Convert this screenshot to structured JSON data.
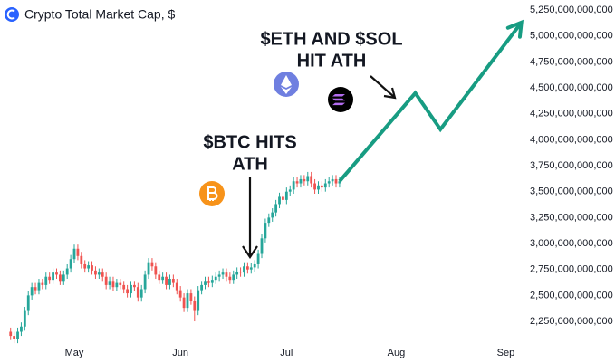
{
  "chart_data": {
    "type": "candlestick",
    "title": "Crypto Total Market Cap, $",
    "x": [
      0,
      1,
      2,
      3,
      4,
      5,
      6,
      7,
      8,
      9,
      10,
      11,
      12,
      13,
      14,
      15,
      16,
      17,
      18,
      19,
      20,
      21,
      22,
      23,
      24,
      25,
      26,
      27,
      28,
      29,
      30,
      31,
      32,
      33,
      34,
      35,
      36,
      37,
      38,
      39,
      40,
      41,
      42,
      43,
      44,
      45,
      46,
      47,
      48,
      49,
      50,
      51,
      52,
      53,
      54,
      55,
      56,
      57,
      58,
      59,
      60,
      61,
      62,
      63,
      64,
      65,
      66,
      67,
      68,
      69,
      70,
      71,
      72,
      73,
      74,
      75,
      76,
      77,
      78,
      79,
      80,
      81,
      82,
      83,
      84,
      85,
      86,
      87,
      88,
      89,
      90,
      91,
      92,
      93
    ],
    "open": [
      2150000000000.0,
      2110000000000.0,
      2080000000000.0,
      2150000000000.0,
      2200000000000.0,
      2350000000000.0,
      2500000000000.0,
      2580000000000.0,
      2550000000000.0,
      2620000000000.0,
      2600000000000.0,
      2680000000000.0,
      2650000000000.0,
      2720000000000.0,
      2700000000000.0,
      2640000000000.0,
      2700000000000.0,
      2760000000000.0,
      2850000000000.0,
      2950000000000.0,
      2880000000000.0,
      2800000000000.0,
      2760000000000.0,
      2790000000000.0,
      2740000000000.0,
      2700000000000.0,
      2720000000000.0,
      2680000000000.0,
      2600000000000.0,
      2640000000000.0,
      2580000000000.0,
      2620000000000.0,
      2600000000000.0,
      2560000000000.0,
      2520000000000.0,
      2600000000000.0,
      2580000000000.0,
      2480000000000.0,
      2560000000000.0,
      2700000000000.0,
      2820000000000.0,
      2780000000000.0,
      2700000000000.0,
      2650000000000.0,
      2680000000000.0,
      2600000000000.0,
      2660000000000.0,
      2620000000000.0,
      2550000000000.0,
      2480000000000.0,
      2380000000000.0,
      2520000000000.0,
      2450000000000.0,
      2350000000000.0,
      2550000000000.0,
      2600000000000.0,
      2640000000000.0,
      2620000000000.0,
      2650000000000.0,
      2680000000000.0,
      2700000000000.0,
      2720000000000.0,
      2680000000000.0,
      2650000000000.0,
      2700000000000.0,
      2730000000000.0,
      2720000000000.0,
      2780000000000.0,
      2750000000000.0,
      2770000000000.0,
      2800000000000.0,
      2900000000000.0,
      3050000000000.0,
      3200000000000.0,
      3250000000000.0,
      3300000000000.0,
      3380000000000.0,
      3450000000000.0,
      3420000000000.0,
      3500000000000.0,
      3520000000000.0,
      3600000000000.0,
      3580000000000.0,
      3620000000000.0,
      3600000000000.0,
      3650000000000.0,
      3580000000000.0,
      3520000000000.0,
      3560000000000.0,
      3540000000000.0,
      3580000000000.0,
      3600000000000.0,
      3620000000000.0,
      3580000000000.0
    ],
    "high": [
      2190000000000.0,
      2150000000000.0,
      2190000000000.0,
      2240000000000.0,
      2390000000000.0,
      2540000000000.0,
      2620000000000.0,
      2620000000000.0,
      2660000000000.0,
      2660000000000.0,
      2720000000000.0,
      2720000000000.0,
      2760000000000.0,
      2760000000000.0,
      2740000000000.0,
      2740000000000.0,
      2800000000000.0,
      2890000000000.0,
      2990000000000.0,
      2990000000000.0,
      2920000000000.0,
      2840000000000.0,
      2830000000000.0,
      2830000000000.0,
      2780000000000.0,
      2760000000000.0,
      2760000000000.0,
      2720000000000.0,
      2680000000000.0,
      2680000000000.0,
      2660000000000.0,
      2660000000000.0,
      2640000000000.0,
      2600000000000.0,
      2640000000000.0,
      2640000000000.0,
      2620000000000.0,
      2600000000000.0,
      2740000000000.0,
      2860000000000.0,
      2860000000000.0,
      2820000000000.0,
      2740000000000.0,
      2720000000000.0,
      2720000000000.0,
      2700000000000.0,
      2700000000000.0,
      2660000000000.0,
      2590000000000.0,
      2520000000000.0,
      2560000000000.0,
      2560000000000.0,
      2490000000000.0,
      2590000000000.0,
      2640000000000.0,
      2680000000000.0,
      2680000000000.0,
      2690000000000.0,
      2720000000000.0,
      2740000000000.0,
      2760000000000.0,
      2760000000000.0,
      2720000000000.0,
      2740000000000.0,
      2770000000000.0,
      2770000000000.0,
      2820000000000.0,
      2820000000000.0,
      2810000000000.0,
      2840000000000.0,
      2940000000000.0,
      3090000000000.0,
      3240000000000.0,
      3290000000000.0,
      3340000000000.0,
      3420000000000.0,
      3490000000000.0,
      3490000000000.0,
      3540000000000.0,
      3560000000000.0,
      3640000000000.0,
      3640000000000.0,
      3660000000000.0,
      3660000000000.0,
      3690000000000.0,
      3690000000000.0,
      3620000000000.0,
      3600000000000.0,
      3600000000000.0,
      3620000000000.0,
      3640000000000.0,
      3660000000000.0,
      3660000000000.0,
      3640000000000.0
    ],
    "low": [
      2070000000000.0,
      2040000000000.0,
      2040000000000.0,
      2110000000000.0,
      2160000000000.0,
      2310000000000.0,
      2460000000000.0,
      2510000000000.0,
      2510000000000.0,
      2560000000000.0,
      2560000000000.0,
      2610000000000.0,
      2610000000000.0,
      2660000000000.0,
      2600000000000.0,
      2600000000000.0,
      2660000000000.0,
      2720000000000.0,
      2810000000000.0,
      2840000000000.0,
      2760000000000.0,
      2720000000000.0,
      2720000000000.0,
      2700000000000.0,
      2660000000000.0,
      2660000000000.0,
      2640000000000.0,
      2560000000000.0,
      2560000000000.0,
      2540000000000.0,
      2540000000000.0,
      2560000000000.0,
      2520000000000.0,
      2480000000000.0,
      2480000000000.0,
      2540000000000.0,
      2440000000000.0,
      2440000000000.0,
      2520000000000.0,
      2660000000000.0,
      2740000000000.0,
      2660000000000.0,
      2610000000000.0,
      2610000000000.0,
      2560000000000.0,
      2560000000000.0,
      2580000000000.0,
      2510000000000.0,
      2440000000000.0,
      2340000000000.0,
      2340000000000.0,
      2410000000000.0,
      2250000000000.0,
      2310000000000.0,
      2510000000000.0,
      2560000000000.0,
      2580000000000.0,
      2580000000000.0,
      2610000000000.0,
      2640000000000.0,
      2660000000000.0,
      2640000000000.0,
      2610000000000.0,
      2610000000000.0,
      2660000000000.0,
      2680000000000.0,
      2680000000000.0,
      2710000000000.0,
      2710000000000.0,
      2730000000000.0,
      2760000000000.0,
      2860000000000.0,
      3010000000000.0,
      3160000000000.0,
      3210000000000.0,
      3260000000000.0,
      3340000000000.0,
      3380000000000.0,
      3380000000000.0,
      3460000000000.0,
      3480000000000.0,
      3540000000000.0,
      3540000000000.0,
      3560000000000.0,
      3560000000000.0,
      3540000000000.0,
      3480000000000.0,
      3480000000000.0,
      3500000000000.0,
      3500000000000.0,
      3540000000000.0,
      3560000000000.0,
      3540000000000.0,
      3540000000000.0
    ],
    "close": [
      2110000000000.0,
      2080000000000.0,
      2150000000000.0,
      2200000000000.0,
      2350000000000.0,
      2500000000000.0,
      2580000000000.0,
      2550000000000.0,
      2620000000000.0,
      2600000000000.0,
      2680000000000.0,
      2650000000000.0,
      2720000000000.0,
      2700000000000.0,
      2640000000000.0,
      2700000000000.0,
      2760000000000.0,
      2850000000000.0,
      2950000000000.0,
      2880000000000.0,
      2800000000000.0,
      2760000000000.0,
      2790000000000.0,
      2740000000000.0,
      2700000000000.0,
      2720000000000.0,
      2680000000000.0,
      2600000000000.0,
      2640000000000.0,
      2580000000000.0,
      2620000000000.0,
      2600000000000.0,
      2560000000000.0,
      2520000000000.0,
      2600000000000.0,
      2580000000000.0,
      2480000000000.0,
      2560000000000.0,
      2700000000000.0,
      2820000000000.0,
      2780000000000.0,
      2700000000000.0,
      2650000000000.0,
      2680000000000.0,
      2600000000000.0,
      2660000000000.0,
      2620000000000.0,
      2550000000000.0,
      2480000000000.0,
      2380000000000.0,
      2520000000000.0,
      2450000000000.0,
      2350000000000.0,
      2550000000000.0,
      2600000000000.0,
      2640000000000.0,
      2620000000000.0,
      2650000000000.0,
      2680000000000.0,
      2700000000000.0,
      2720000000000.0,
      2680000000000.0,
      2650000000000.0,
      2700000000000.0,
      2730000000000.0,
      2720000000000.0,
      2780000000000.0,
      2750000000000.0,
      2770000000000.0,
      2800000000000.0,
      2900000000000.0,
      3050000000000.0,
      3200000000000.0,
      3250000000000.0,
      3300000000000.0,
      3380000000000.0,
      3450000000000.0,
      3420000000000.0,
      3500000000000.0,
      3520000000000.0,
      3600000000000.0,
      3580000000000.0,
      3620000000000.0,
      3600000000000.0,
      3650000000000.0,
      3580000000000.0,
      3520000000000.0,
      3560000000000.0,
      3540000000000.0,
      3580000000000.0,
      3600000000000.0,
      3620000000000.0,
      3580000000000.0,
      3600000000000.0
    ],
    "up_color": "#26a69a",
    "down_color": "#ef5350",
    "projection": {
      "x": [
        93,
        114.4,
        121.5,
        144.4
      ],
      "values": [
        3600000000000.0,
        4450000000000.0,
        4100000000000.0,
        5130000000000.0
      ],
      "color": "#179c82"
    },
    "annotations": [
      {
        "lines": [
          "$ETH AND $SOL",
          "HIT ATH"
        ]
      },
      {
        "lines": [
          "$BTC HITS",
          "ATH"
        ]
      }
    ],
    "xlim": [
      -3,
      145
    ],
    "xticks": [
      {
        "value": 18,
        "label": "May"
      },
      {
        "value": 48,
        "label": "Jun"
      },
      {
        "value": 78,
        "label": "Jul"
      },
      {
        "value": 109,
        "label": "Aug"
      },
      {
        "value": 140,
        "label": "Sep"
      }
    ],
    "ylim": [
      2000000000000.0,
      5300000000000.0
    ],
    "yticks": [
      {
        "value": 2250000000000.0,
        "label": "2,250,000,000,000"
      },
      {
        "value": 2500000000000.0,
        "label": "2,500,000,000,000"
      },
      {
        "value": 2750000000000.0,
        "label": "2,750,000,000,000"
      },
      {
        "value": 3000000000000.0,
        "label": "3,000,000,000,000"
      },
      {
        "value": 3250000000000.0,
        "label": "3,250,000,000,000"
      },
      {
        "value": 3500000000000.0,
        "label": "3,500,000,000,000"
      },
      {
        "value": 3750000000000.0,
        "label": "3,750,000,000,000"
      },
      {
        "value": 4000000000000.0,
        "label": "4,000,000,000,000"
      },
      {
        "value": 4250000000000.0,
        "label": "4,250,000,000,000"
      },
      {
        "value": 4500000000000.0,
        "label": "4,500,000,000,000"
      },
      {
        "value": 4750000000000.0,
        "label": "4,750,000,000,000"
      },
      {
        "value": 5000000000000.0,
        "label": "5,000,000,000,000"
      },
      {
        "value": 5250000000000.0,
        "label": "5,250,000,000,000"
      }
    ]
  }
}
